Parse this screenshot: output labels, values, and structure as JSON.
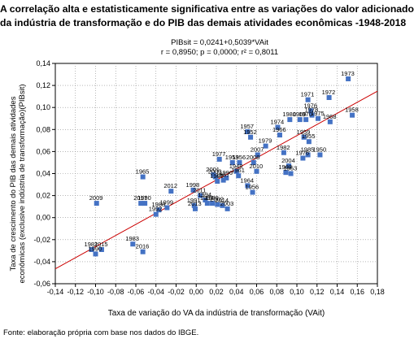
{
  "title_line1": "A correlação alta e estatisticamente significativa entre as variações do valor adicionado",
  "title_line2": "da indústria de transformação e do PIB das demais atividades econômicas -1948-2018",
  "source": "Fonte: elaboração própria com base nos dados do IBGE.",
  "chart_data": {
    "type": "scatter",
    "regression_equation": "PIBsit = 0,0241+0,5039*VAit",
    "regression_stats": "r = 0,8950; p = 0,0000; r² = 0,8011",
    "regression": {
      "intercept": 0.0241,
      "slope": 0.5039
    },
    "xlabel": "Taxa de variação do VA da indústria de transformação (VAit)",
    "ylabel_line1": "Taxa de crescimento do PIB das demais atividades",
    "ylabel_line2": "econômicas (exclusive indústria de transformação)(PIBsit)",
    "xlim": [
      -0.14,
      0.18
    ],
    "ylim": [
      -0.06,
      0.14
    ],
    "x_ticks": [
      "-0,14",
      "-0,12",
      "-0,10",
      "-0,08",
      "-0,06",
      "-0,04",
      "-0,02",
      "0,00",
      "0,02",
      "0,04",
      "0,06",
      "0,08",
      "0,10",
      "0,12",
      "0,14",
      "0,16",
      "0,18"
    ],
    "y_ticks": [
      "-0,06",
      "-0,04",
      "-0,02",
      "0,00",
      "0,02",
      "0,04",
      "0,06",
      "0,08",
      "0,10",
      "0,12",
      "0,14"
    ],
    "grid": true,
    "marker_color": "#4472c4",
    "line_color": "#cc0000",
    "points": [
      {
        "label": "1973",
        "x": 0.151,
        "y": 0.126
      },
      {
        "label": "1972",
        "x": 0.132,
        "y": 0.109
      },
      {
        "label": "1971",
        "x": 0.111,
        "y": 0.107
      },
      {
        "label": "1958",
        "x": 0.155,
        "y": 0.093
      },
      {
        "label": "1968",
        "x": 0.133,
        "y": 0.087
      },
      {
        "label": "1976",
        "x": 0.114,
        "y": 0.097
      },
      {
        "label": "1978",
        "x": 0.115,
        "y": 0.093
      },
      {
        "label": "1980",
        "x": 0.093,
        "y": 0.089
      },
      {
        "label": "1969",
        "x": 0.103,
        "y": 0.089
      },
      {
        "label": "1970",
        "x": 0.109,
        "y": 0.089
      },
      {
        "label": "1975",
        "x": 0.121,
        "y": 0.09
      },
      {
        "label": "1974",
        "x": 0.081,
        "y": 0.082
      },
      {
        "label": "1957",
        "x": 0.051,
        "y": 0.078
      },
      {
        "label": "1952",
        "x": 0.054,
        "y": 0.073
      },
      {
        "label": "1966",
        "x": 0.083,
        "y": 0.075
      },
      {
        "label": "1959",
        "x": 0.107,
        "y": 0.073
      },
      {
        "label": "1955",
        "x": 0.112,
        "y": 0.069
      },
      {
        "label": "1979",
        "x": 0.069,
        "y": 0.065
      },
      {
        "label": "1982",
        "x": 0.087,
        "y": 0.059
      },
      {
        "label": "2007",
        "x": 0.061,
        "y": 0.057
      },
      {
        "label": "1985",
        "x": 0.111,
        "y": 0.057
      },
      {
        "label": "1950",
        "x": 0.123,
        "y": 0.057
      },
      {
        "label": "1976b",
        "x": 0.106,
        "y": 0.054
      },
      {
        "label": "2008",
        "x": 0.057,
        "y": 0.05
      },
      {
        "label": "1977",
        "x": 0.023,
        "y": 0.053
      },
      {
        "label": "1953",
        "x": 0.036,
        "y": 0.05
      },
      {
        "label": "1956",
        "x": 0.043,
        "y": 0.05
      },
      {
        "label": "2004",
        "x": 0.092,
        "y": 0.047
      },
      {
        "label": "1963",
        "x": 0.089,
        "y": 0.041
      },
      {
        "label": "1953b",
        "x": 0.094,
        "y": 0.04
      },
      {
        "label": "1948",
        "x": 0.04,
        "y": 0.042
      },
      {
        "label": "1961",
        "x": 0.042,
        "y": 0.038
      },
      {
        "label": "2001",
        "x": 0.017,
        "y": 0.039
      },
      {
        "label": "2000",
        "x": 0.019,
        "y": 0.037
      },
      {
        "label": "1995",
        "x": 0.021,
        "y": 0.033
      },
      {
        "label": "1967",
        "x": 0.027,
        "y": 0.034
      },
      {
        "label": "1996",
        "x": 0.03,
        "y": 0.036
      },
      {
        "label": "2010",
        "x": 0.06,
        "y": 0.042
      },
      {
        "label": "1964",
        "x": 0.051,
        "y": 0.029
      },
      {
        "label": "1956b",
        "x": 0.056,
        "y": 0.023
      },
      {
        "label": "1965",
        "x": -0.053,
        "y": 0.037
      },
      {
        "label": "2012",
        "x": -0.025,
        "y": 0.024
      },
      {
        "label": "1998",
        "x": -0.003,
        "y": 0.025
      },
      {
        "label": "2011",
        "x": 0.004,
        "y": 0.02
      },
      {
        "label": "1994",
        "x": 0.009,
        "y": 0.016
      },
      {
        "label": "1997",
        "x": 0.011,
        "y": 0.013
      },
      {
        "label": "1986",
        "x": 0.016,
        "y": 0.013
      },
      {
        "label": "2002",
        "x": 0.021,
        "y": 0.012
      },
      {
        "label": "2014",
        "x": 0.026,
        "y": 0.011
      },
      {
        "label": "2003",
        "x": 0.031,
        "y": 0.008
      },
      {
        "label": "1991",
        "x": -0.002,
        "y": 0.011
      },
      {
        "label": "2013",
        "x": -0.001,
        "y": 0.008
      },
      {
        "label": "1999",
        "x": -0.029,
        "y": 0.009
      },
      {
        "label": "1988",
        "x": -0.037,
        "y": 0.007
      },
      {
        "label": "1992",
        "x": -0.04,
        "y": 0.003
      },
      {
        "label": "2009",
        "x": -0.099,
        "y": 0.013
      },
      {
        "label": "1990",
        "x": -0.051,
        "y": 0.013
      },
      {
        "label": "2017",
        "x": -0.055,
        "y": 0.013
      },
      {
        "label": "1983",
        "x": -0.063,
        "y": -0.024
      },
      {
        "label": "1981",
        "x": -0.104,
        "y": -0.029
      },
      {
        "label": "2015",
        "x": -0.094,
        "y": -0.029
      },
      {
        "label": "1990b",
        "x": -0.1,
        "y": -0.033
      },
      {
        "label": "2016",
        "x": -0.053,
        "y": -0.031
      }
    ]
  }
}
